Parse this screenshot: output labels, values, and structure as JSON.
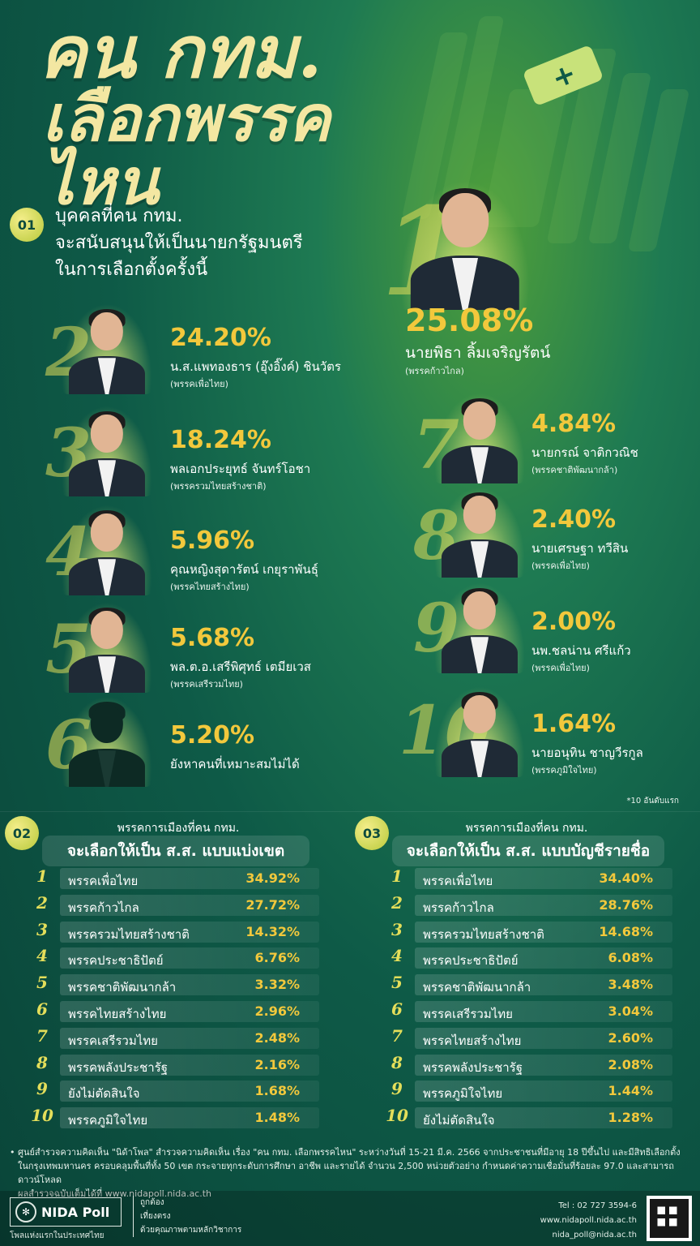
{
  "header": {
    "title_line1": "คน กทม.",
    "title_line2": "เลือกพรรคไหน"
  },
  "section1": {
    "number": "01",
    "question_line1": "บุคคลที่คน กทม.",
    "question_line2": "จะสนับสนุนให้เป็นนายกรัฐมนตรี",
    "question_line3": "ในการเลือกตั้งครั้งนี้",
    "candidates": [
      {
        "rank": "1",
        "pct": "25.08%",
        "name": "นายพิธา ลิ้มเจริญรัตน์",
        "party": "(พรรคก้าวไกล)"
      },
      {
        "rank": "2",
        "pct": "24.20%",
        "name": "น.ส.แพทองธาร (อุ๊งอิ๊งค์) ชินวัตร",
        "party": "(พรรคเพื่อไทย)"
      },
      {
        "rank": "3",
        "pct": "18.24%",
        "name": "พลเอกประยุทธ์ จันทร์โอชา",
        "party": "(พรรครวมไทยสร้างชาติ)"
      },
      {
        "rank": "4",
        "pct": "5.96%",
        "name": "คุณหญิงสุดารัตน์ เกยุราพันธุ์",
        "party": "(พรรคไทยสร้างไทย)"
      },
      {
        "rank": "5",
        "pct": "5.68%",
        "name": "พล.ต.อ.เสรีพิศุทธ์ เตมียเวส",
        "party": "(พรรคเสรีรวมไทย)"
      },
      {
        "rank": "6",
        "pct": "5.20%",
        "name": "ยังหาคนที่เหมาะสมไม่ได้",
        "party": ""
      },
      {
        "rank": "7",
        "pct": "4.84%",
        "name": "นายกรณ์ จาติกวณิช",
        "party": "(พรรคชาติพัฒนากล้า)"
      },
      {
        "rank": "8",
        "pct": "2.40%",
        "name": "นายเศรษฐา ทวีสิน",
        "party": "(พรรคเพื่อไทย)"
      },
      {
        "rank": "9",
        "pct": "2.00%",
        "name": "นพ.ชลน่าน ศรีแก้ว",
        "party": "(พรรคเพื่อไทย)"
      },
      {
        "rank": "10",
        "pct": "1.64%",
        "name": "นายอนุทิน ชาญวีรกูล",
        "party": "(พรรคภูมิใจไทย)"
      }
    ],
    "note": "*10 อันดับแรก"
  },
  "section2": {
    "number": "02",
    "title": "พรรคการเมืองที่คน กทม.",
    "subtitle": "จะเลือกให้เป็น ส.ส. แบบแบ่งเขต",
    "rows": [
      {
        "rank": "1",
        "party": "พรรคเพื่อไทย",
        "value": "34.92%"
      },
      {
        "rank": "2",
        "party": "พรรคก้าวไกล",
        "value": "27.72%"
      },
      {
        "rank": "3",
        "party": "พรรครวมไทยสร้างชาติ",
        "value": "14.32%"
      },
      {
        "rank": "4",
        "party": "พรรคประชาธิปัตย์",
        "value": "6.76%"
      },
      {
        "rank": "5",
        "party": "พรรคชาติพัฒนากล้า",
        "value": "3.32%"
      },
      {
        "rank": "6",
        "party": "พรรคไทยสร้างไทย",
        "value": "2.96%"
      },
      {
        "rank": "7",
        "party": "พรรคเสรีรวมไทย",
        "value": "2.48%"
      },
      {
        "rank": "8",
        "party": "พรรคพลังประชารัฐ",
        "value": "2.16%"
      },
      {
        "rank": "9",
        "party": "ยังไม่ตัดสินใจ",
        "value": "1.68%"
      },
      {
        "rank": "10",
        "party": "พรรคภูมิใจไทย",
        "value": "1.48%"
      }
    ]
  },
  "section3": {
    "number": "03",
    "title": "พรรคการเมืองที่คน กทม.",
    "subtitle": "จะเลือกให้เป็น ส.ส. แบบบัญชีรายชื่อ",
    "rows": [
      {
        "rank": "1",
        "party": "พรรคเพื่อไทย",
        "value": "34.40%"
      },
      {
        "rank": "2",
        "party": "พรรคก้าวไกล",
        "value": "28.76%"
      },
      {
        "rank": "3",
        "party": "พรรครวมไทยสร้างชาติ",
        "value": "14.68%"
      },
      {
        "rank": "4",
        "party": "พรรคประชาธิปัตย์",
        "value": "6.08%"
      },
      {
        "rank": "5",
        "party": "พรรคชาติพัฒนากล้า",
        "value": "3.48%"
      },
      {
        "rank": "6",
        "party": "พรรคเสรีรวมไทย",
        "value": "3.04%"
      },
      {
        "rank": "7",
        "party": "พรรคไทยสร้างไทย",
        "value": "2.60%"
      },
      {
        "rank": "8",
        "party": "พรรคพลังประชารัฐ",
        "value": "2.08%"
      },
      {
        "rank": "9",
        "party": "พรรคภูมิใจไทย",
        "value": "1.44%"
      },
      {
        "rank": "10",
        "party": "ยังไม่ตัดสินใจ",
        "value": "1.28%"
      }
    ]
  },
  "footer": {
    "note_line1": "• ศูนย์สำรวจความคิดเห็น \"นิด้าโพล\" สำรวจความคิดเห็น เรื่อง \"คน กทม. เลือกพรรคไหน\" ระหว่างวันที่ 15-21 มี.ค. 2566 จากประชาชนที่มีอายุ 18 ปีขึ้นไป และมีสิทธิเลือกตั้ง",
    "note_line2": "ในกรุงเทพมหานคร ครอบคลุมพื้นที่ทั้ง 50 เขต กระจายทุกระดับการศึกษา อาชีพ และรายได้ จำนวน 2,500 หน่วยตัวอย่าง กำหนดค่าความเชื่อมั่นที่ร้อยละ 97.0 และสามารถดาวน์โหลด",
    "note_line3": "ผลสำรวจฉบับเต็มได้ที่ www.nidapoll.nida.ac.th",
    "logo_text": "NIDA Poll",
    "logo_sub": "โพลแห่งแรกในประเทศไทย",
    "slogan1": "ถูกต้อง",
    "slogan2": "เที่ยงตรง",
    "slogan3": "ด้วยคุณภาพตามหลักวิชาการ",
    "tel": "Tel : 02 727 3594-6",
    "website": "www.nidapoll.nida.ac.th",
    "email": "nida_poll@nida.ac.th"
  }
}
